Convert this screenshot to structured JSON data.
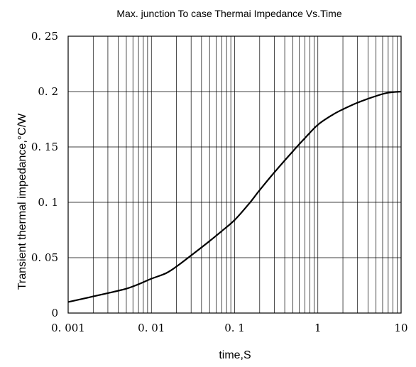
{
  "chart_data": {
    "type": "line",
    "title": "Max. junction To case Thermai Impedance Vs.Time",
    "xlabel": "time,S",
    "ylabel": "Transient thermal impedance,°C/W",
    "x_scale": "log",
    "xlim": [
      0.001,
      10
    ],
    "ylim": [
      0,
      0.25
    ],
    "grid": true,
    "x_ticks": [
      0.001,
      0.01,
      0.1,
      1,
      10
    ],
    "x_tick_labels": [
      "0. 001",
      "0. 01",
      "0. 1",
      "1",
      "10"
    ],
    "y_ticks": [
      0,
      0.05,
      0.1,
      0.15,
      0.2,
      0.25
    ],
    "y_tick_labels": [
      "0",
      "0. 05",
      "0. 1",
      "0. 15",
      "0. 2",
      "0. 25"
    ],
    "series": [
      {
        "color": "#000000",
        "x": [
          0.001,
          0.002,
          0.003,
          0.005,
          0.007,
          0.01,
          0.015,
          0.02,
          0.03,
          0.05,
          0.07,
          0.1,
          0.15,
          0.2,
          0.3,
          0.5,
          0.7,
          1,
          1.5,
          2,
          3,
          5,
          7,
          10
        ],
        "y": [
          0.01,
          0.015,
          0.018,
          0.022,
          0.026,
          0.031,
          0.036,
          0.042,
          0.052,
          0.065,
          0.074,
          0.084,
          0.099,
          0.111,
          0.127,
          0.146,
          0.158,
          0.17,
          0.179,
          0.184,
          0.19,
          0.196,
          0.199,
          0.2
        ]
      }
    ]
  }
}
